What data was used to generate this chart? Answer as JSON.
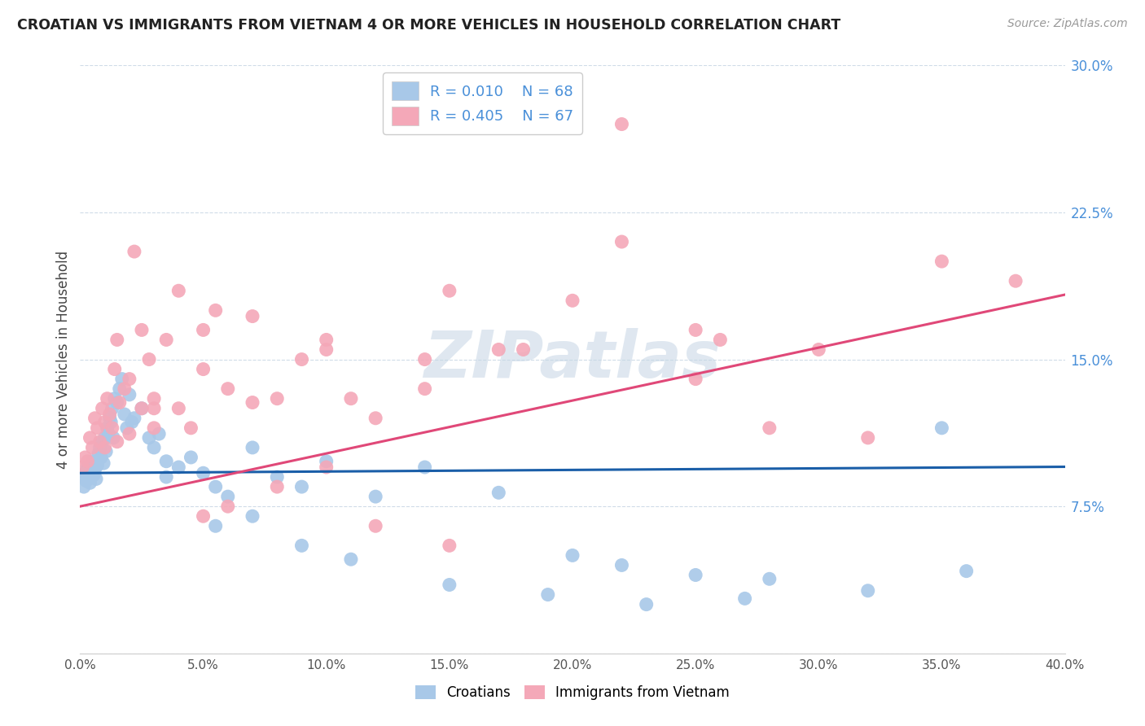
{
  "title": "CROATIAN VS IMMIGRANTS FROM VIETNAM 4 OR MORE VEHICLES IN HOUSEHOLD CORRELATION CHART",
  "source": "Source: ZipAtlas.com",
  "ylabel": "4 or more Vehicles in Household",
  "xlim": [
    0.0,
    40.0
  ],
  "ylim": [
    0.0,
    30.0
  ],
  "yticks": [
    0.0,
    7.5,
    15.0,
    22.5,
    30.0
  ],
  "ytick_labels": [
    "",
    "7.5%",
    "15.0%",
    "22.5%",
    "30.0%"
  ],
  "legend_r_croatian": "R = 0.010",
  "legend_n_croatian": "N = 68",
  "legend_r_vietnam": "R = 0.405",
  "legend_n_vietnam": "N = 67",
  "croatian_color": "#a8c8e8",
  "vietnam_color": "#f4a8b8",
  "croatian_line_color": "#1a5ea8",
  "vietnam_line_color": "#e04878",
  "background_color": "#ffffff",
  "grid_color": "#d0dce8",
  "watermark": "ZIPatlas",
  "croatian_x": [
    0.1,
    0.15,
    0.2,
    0.25,
    0.3,
    0.35,
    0.4,
    0.45,
    0.5,
    0.55,
    0.6,
    0.65,
    0.7,
    0.75,
    0.8,
    0.85,
    0.9,
    0.95,
    1.0,
    1.05,
    1.1,
    1.15,
    1.2,
    1.25,
    1.3,
    1.35,
    1.4,
    1.5,
    1.6,
    1.7,
    1.8,
    1.9,
    2.0,
    2.1,
    2.2,
    2.5,
    2.8,
    3.0,
    3.2,
    3.5,
    4.0,
    4.5,
    5.0,
    5.5,
    6.0,
    7.0,
    8.0,
    9.0,
    10.0,
    12.0,
    14.0,
    17.0,
    20.0,
    22.0,
    25.0,
    28.0,
    32.0,
    36.0,
    3.5,
    5.5,
    7.0,
    9.0,
    11.0,
    15.0,
    19.0,
    23.0,
    27.0,
    35.0
  ],
  "croatian_y": [
    9.0,
    8.5,
    9.2,
    8.8,
    9.5,
    9.0,
    8.7,
    9.3,
    9.8,
    9.1,
    9.4,
    8.9,
    9.6,
    10.2,
    10.5,
    10.0,
    10.8,
    9.7,
    11.0,
    10.3,
    11.5,
    11.2,
    12.0,
    11.8,
    12.5,
    11.0,
    13.0,
    12.8,
    13.5,
    14.0,
    12.2,
    11.5,
    13.2,
    11.8,
    12.0,
    12.5,
    11.0,
    10.5,
    11.2,
    9.8,
    9.5,
    10.0,
    9.2,
    8.5,
    8.0,
    10.5,
    9.0,
    8.5,
    9.8,
    8.0,
    9.5,
    8.2,
    5.0,
    4.5,
    4.0,
    3.8,
    3.2,
    4.2,
    9.0,
    6.5,
    7.0,
    5.5,
    4.8,
    3.5,
    3.0,
    2.5,
    2.8,
    11.5
  ],
  "vietnam_x": [
    0.1,
    0.2,
    0.3,
    0.4,
    0.5,
    0.6,
    0.7,
    0.8,
    0.9,
    1.0,
    1.1,
    1.2,
    1.3,
    1.4,
    1.5,
    1.6,
    1.8,
    2.0,
    2.2,
    2.5,
    2.8,
    3.0,
    3.5,
    4.0,
    4.5,
    5.0,
    5.5,
    6.0,
    7.0,
    8.0,
    9.0,
    10.0,
    11.0,
    12.0,
    14.0,
    15.0,
    17.0,
    20.0,
    22.0,
    25.0,
    28.0,
    32.0,
    1.0,
    1.5,
    2.0,
    2.5,
    3.0,
    4.0,
    5.0,
    6.0,
    8.0,
    10.0,
    12.0,
    15.0,
    18.0,
    22.0,
    26.0,
    30.0,
    35.0,
    38.0,
    3.0,
    5.0,
    7.0,
    10.0,
    14.0,
    18.0,
    25.0
  ],
  "vietnam_y": [
    9.5,
    10.0,
    9.8,
    11.0,
    10.5,
    12.0,
    11.5,
    10.8,
    12.5,
    11.8,
    13.0,
    12.2,
    11.5,
    14.5,
    16.0,
    12.8,
    13.5,
    14.0,
    20.5,
    16.5,
    15.0,
    12.5,
    16.0,
    18.5,
    11.5,
    16.5,
    17.5,
    13.5,
    17.2,
    13.0,
    15.0,
    15.5,
    13.0,
    12.0,
    13.5,
    18.5,
    15.5,
    18.0,
    21.0,
    16.5,
    11.5,
    11.0,
    10.5,
    10.8,
    11.2,
    12.5,
    11.5,
    12.5,
    7.0,
    7.5,
    8.5,
    9.5,
    6.5,
    5.5,
    28.5,
    27.0,
    16.0,
    15.5,
    20.0,
    19.0,
    13.0,
    14.5,
    12.8,
    16.0,
    15.0,
    15.5,
    14.0
  ]
}
